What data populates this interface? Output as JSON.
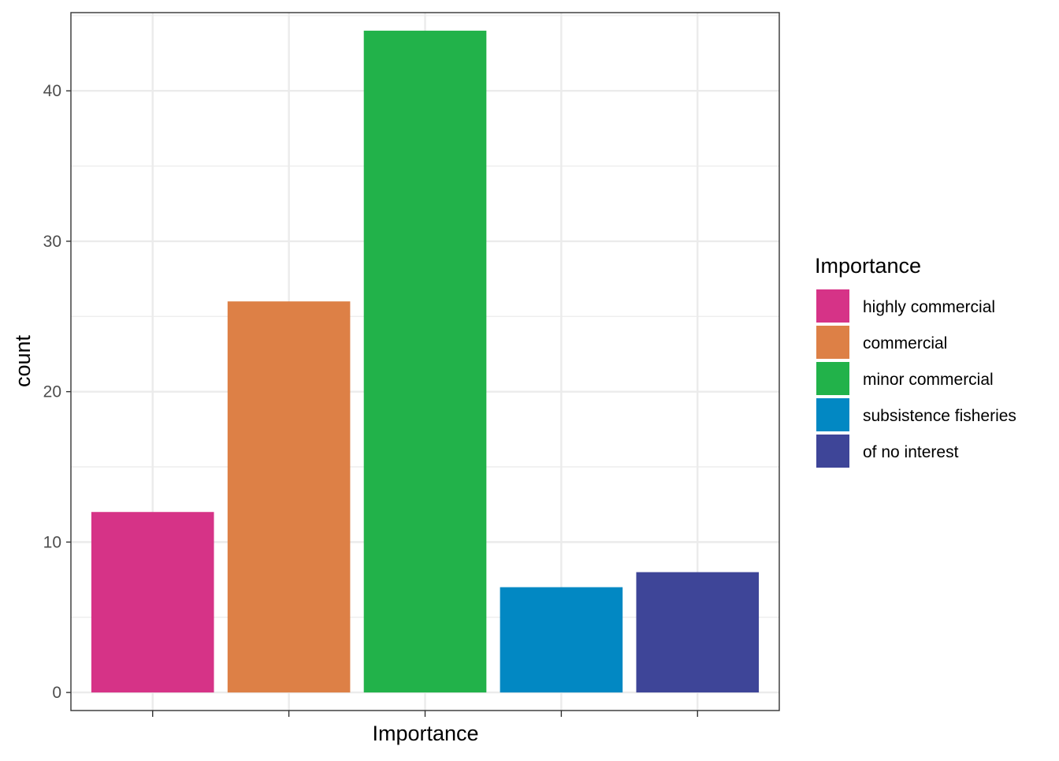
{
  "chart_data": {
    "type": "bar",
    "categories": [
      "highly commercial",
      "commercial",
      "minor commercial",
      "subsistence fisheries",
      "of no interest"
    ],
    "values": [
      12,
      26,
      44,
      7,
      8
    ],
    "colors": [
      "#d63387",
      "#dd8046",
      "#22b24a",
      "#0288c3",
      "#3e4598"
    ],
    "xlabel": "Importance",
    "ylabel": "count",
    "ylim": [
      -1.2,
      45.2
    ],
    "yticks": [
      0,
      10,
      20,
      30,
      40
    ],
    "grid": true,
    "x_tick_labels_shown": false,
    "legend": {
      "title": "Importance",
      "position": "right",
      "items": [
        "highly commercial",
        "commercial",
        "minor commercial",
        "subsistence fisheries",
        "of no interest"
      ]
    }
  }
}
